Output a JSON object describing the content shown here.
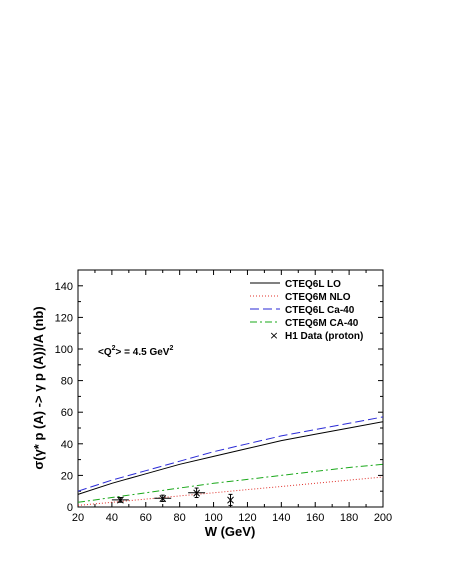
{
  "chart_data": {
    "type": "line",
    "xlabel": "W (GeV)",
    "ylabel": "σ(γ* p (A) -> γ p (A))/A (nb)",
    "xlim": [
      20,
      200
    ],
    "ylim": [
      0,
      150
    ],
    "xticks": [
      20,
      40,
      60,
      80,
      100,
      120,
      140,
      160,
      180,
      200
    ],
    "yticks": [
      0,
      20,
      40,
      60,
      80,
      100,
      120,
      140
    ],
    "annotation": {
      "prefix": "<Q",
      "sup": "2",
      "middle": "> = 4.5 GeV",
      "sup2": "2"
    },
    "legend_position": "top-right",
    "series": [
      {
        "name": "CTEQ6L LO",
        "color": "#000000",
        "dash": "",
        "x": [
          20,
          40,
          60,
          80,
          100,
          120,
          140,
          160,
          180,
          200
        ],
        "y": [
          8,
          15,
          21,
          27,
          32,
          37,
          42,
          46,
          50,
          54
        ]
      },
      {
        "name": "CTEQ6M NLO",
        "color": "#e0302a",
        "dash": "1,2",
        "x": [
          20,
          40,
          60,
          80,
          100,
          120,
          140,
          160,
          180,
          200
        ],
        "y": [
          1,
          3,
          5,
          7,
          9,
          11,
          13,
          15,
          17,
          19
        ]
      },
      {
        "name": "CTEQ6L Ca-40",
        "color": "#2a2ad6",
        "dash": "9,4",
        "x": [
          20,
          40,
          60,
          80,
          100,
          120,
          140,
          160,
          180,
          200
        ],
        "y": [
          10,
          17,
          23,
          29,
          35,
          40,
          45,
          49,
          53,
          57
        ]
      },
      {
        "name": "CTEQ6M CA-40",
        "color": "#1aa81a",
        "dash": "7,3,2,3",
        "x": [
          20,
          40,
          60,
          80,
          100,
          120,
          140,
          160,
          180,
          200
        ],
        "y": [
          3,
          6,
          9,
          12,
          15,
          17.5,
          20,
          22.5,
          25,
          27
        ]
      }
    ],
    "data_points": {
      "name": "H1 Data (proton)",
      "marker": "×",
      "points": [
        {
          "x": 45,
          "y": 4.5,
          "xerr": 5,
          "yerr": 1.5
        },
        {
          "x": 70,
          "y": 5.5,
          "xerr": 5,
          "yerr": 2
        },
        {
          "x": 90,
          "y": 9,
          "xerr": 5,
          "yerr": 3
        },
        {
          "x": 110,
          "y": 4.5,
          "xerr": 0,
          "yerr": 3.5
        }
      ]
    }
  }
}
